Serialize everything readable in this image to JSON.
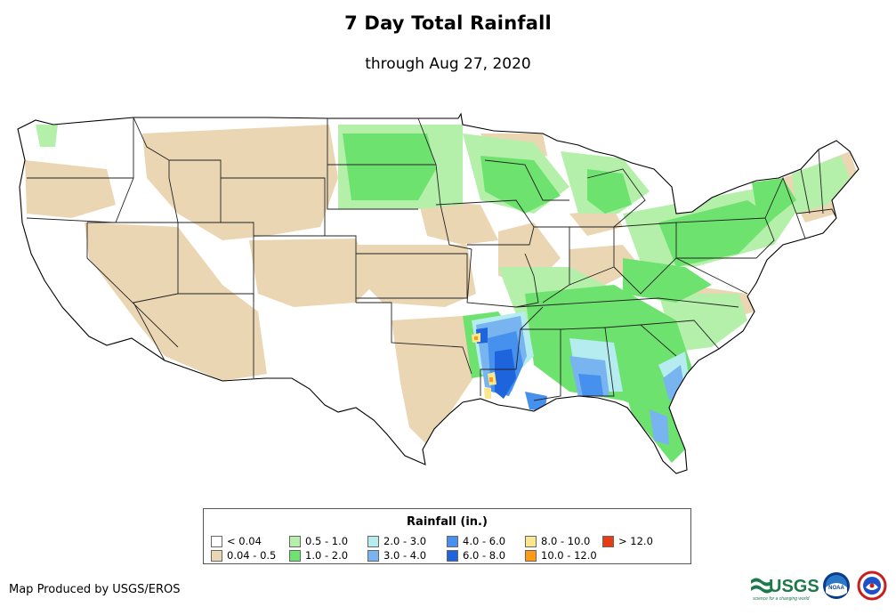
{
  "title": "7 Day Total Rainfall",
  "subtitle": "through Aug 27, 2020",
  "legend": {
    "title": "Rainfall (in.)",
    "items": [
      {
        "label": "< 0.04",
        "color": "#ffffff"
      },
      {
        "label": "0.04 - 0.5",
        "color": "#ebd6b4"
      },
      {
        "label": "0.5 - 1.0",
        "color": "#b4f0aa"
      },
      {
        "label": "1.0 - 2.0",
        "color": "#6ee26e"
      },
      {
        "label": "2.0 - 3.0",
        "color": "#b4ecf0"
      },
      {
        "label": "3.0 - 4.0",
        "color": "#78b4f0"
      },
      {
        "label": "4.0 - 6.0",
        "color": "#4690ee"
      },
      {
        "label": "6.0 - 8.0",
        "color": "#1e64dc"
      },
      {
        "label": "8.0 - 10.0",
        "color": "#fae68c"
      },
      {
        "label": "10.0 - 12.0",
        "color": "#ff9a14"
      },
      {
        "label": "> 12.0",
        "color": "#e83c14"
      }
    ]
  },
  "credit": "Map Produced by USGS/EROS",
  "logos": {
    "usgs_text": "USGS",
    "usgs_tagline": "science for a changing world",
    "noaa_text": "NOAA",
    "nws_icon": "nws-icon"
  }
}
